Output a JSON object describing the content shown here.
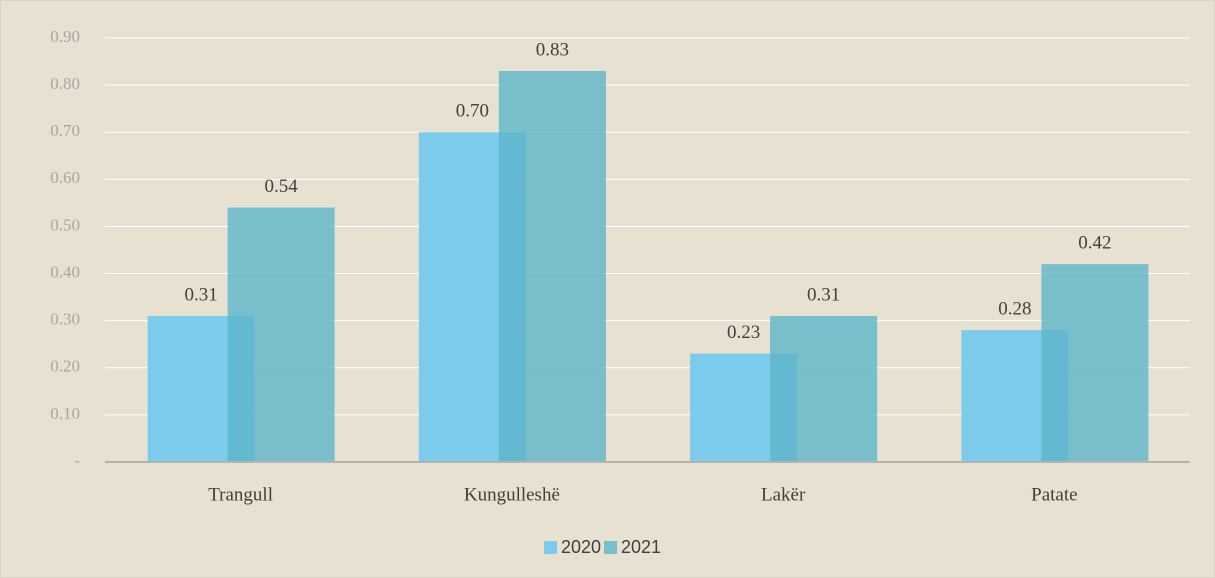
{
  "chart_data": {
    "type": "bar",
    "categories": [
      "Trangull",
      "Kungulleshë",
      "Lakër",
      "Patate"
    ],
    "series": [
      {
        "name": "2020",
        "color": "#7ccbec",
        "values": [
          0.31,
          0.7,
          0.23,
          0.28
        ],
        "value_labels": [
          "0.31",
          "0.70",
          "0.23",
          "0.28"
        ]
      },
      {
        "name": "2021",
        "color": "#5db5c9",
        "values": [
          0.54,
          0.83,
          0.31,
          0.42
        ],
        "value_labels": [
          "0.54",
          "0.83",
          "0.31",
          "0.42"
        ]
      }
    ],
    "ylim": [
      0,
      0.9
    ],
    "yticks": [
      {
        "value": 0,
        "label": "-"
      },
      {
        "value": 0.1,
        "label": "0.10"
      },
      {
        "value": 0.2,
        "label": "0.20"
      },
      {
        "value": 0.3,
        "label": "0.30"
      },
      {
        "value": 0.4,
        "label": "0.40"
      },
      {
        "value": 0.5,
        "label": "0.50"
      },
      {
        "value": 0.6,
        "label": "0.60"
      },
      {
        "value": 0.7,
        "label": "0.70"
      },
      {
        "value": 0.8,
        "label": "0.80"
      },
      {
        "value": 0.9,
        "label": "0.90"
      }
    ],
    "grid": true,
    "legend": "bottom"
  }
}
